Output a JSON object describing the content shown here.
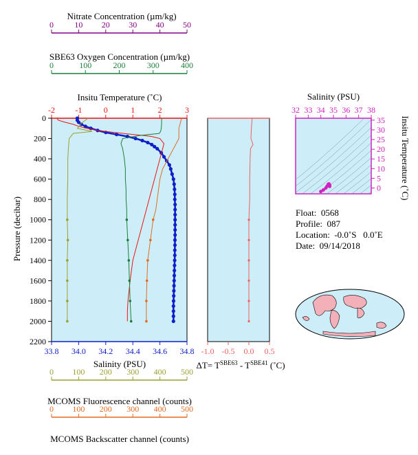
{
  "colors": {
    "nitrate": "#800080",
    "oxygen": "#1a7f3a",
    "temperature": "#ee1111",
    "salinity": "#1020c8",
    "fluorescence": "#9aa030",
    "backscatter": "#e06a20",
    "delta_t": "#ee6060",
    "ts_diagram": "#d020c0",
    "panel_bg": "#cdeef8",
    "land": "#f4b0b8"
  },
  "axes": {
    "nitrate": {
      "title": "Nitrate Concentration (µm/kg)",
      "ticks": [
        "0",
        "10",
        "20",
        "30",
        "40",
        "50"
      ]
    },
    "oxygen": {
      "title": "SBE63 Oxygen Concentration (µm/kg)",
      "ticks": [
        "0",
        "100",
        "200",
        "300",
        "400"
      ]
    },
    "temperature": {
      "title": "Insitu Temperature (˚C)",
      "ticks": [
        "-2",
        "-1",
        "0",
        "1",
        "2",
        "3"
      ]
    },
    "pressure": {
      "title": "Pressure (decibar)",
      "ticks": [
        "0",
        "200",
        "400",
        "600",
        "800",
        "1000",
        "1200",
        "1400",
        "1600",
        "1800",
        "2000",
        "2200"
      ]
    },
    "salinity": {
      "title": "Salinity (PSU)",
      "ticks": [
        "33.8",
        "34.0",
        "34.2",
        "34.4",
        "34.6",
        "34.8"
      ]
    },
    "fluorescence": {
      "title": "MCOMS Fluorescence channel (counts)",
      "ticks": [
        "0",
        "100",
        "200",
        "300",
        "400",
        "500"
      ]
    },
    "backscatter": {
      "title": "MCOMS Backscatter channel (counts)",
      "ticks": [
        "0",
        "100",
        "200",
        "300",
        "400",
        "500"
      ]
    },
    "delta_t": {
      "title_prefix": "ΔT= T",
      "sup1": "SBE63",
      "mid": " - T",
      "sup2": "SBE41",
      "suffix": " (˚C)",
      "ticks": [
        "-1.0",
        "-0.5",
        "0.0",
        "0.5"
      ]
    },
    "ts_salinity": {
      "title": "Salinity (PSU)",
      "ticks": [
        "32",
        "33",
        "34",
        "35",
        "36",
        "37",
        "38"
      ]
    },
    "ts_temperature": {
      "title": "Insitu Temperature (˚C)",
      "ticks": [
        "35",
        "30",
        "25",
        "20",
        "15",
        "10",
        "5",
        "0"
      ]
    }
  },
  "info": {
    "float": "Float:  0568",
    "profile": "Profile:  087",
    "location": "Location:  -0.0˚S   0.0˚E",
    "date": "Date:  09/14/2018"
  },
  "chart_data": {
    "type": "line",
    "y_variable": "Pressure (decibar)",
    "ylim": [
      2200,
      0
    ],
    "series": [
      {
        "name": "Salinity (PSU)",
        "xlim": [
          33.8,
          34.8
        ],
        "pressure": [
          0,
          20,
          40,
          60,
          80,
          100,
          120,
          140,
          160,
          180,
          200,
          220,
          240,
          260,
          280,
          300,
          340,
          380,
          420,
          460,
          500,
          550,
          600,
          650,
          700,
          750,
          800,
          850,
          900,
          950,
          1000,
          1050,
          1100,
          1150,
          1200,
          1250,
          1300,
          1350,
          1400,
          1450,
          1500,
          1550,
          1600,
          1650,
          1700,
          1750,
          1800,
          1850,
          1900,
          1950,
          2000
        ],
        "values": [
          33.99,
          33.99,
          34.0,
          34.02,
          34.05,
          34.09,
          34.14,
          34.2,
          34.28,
          34.36,
          34.42,
          34.47,
          34.51,
          34.54,
          34.56,
          34.58,
          34.61,
          34.63,
          34.65,
          34.67,
          34.68,
          34.69,
          34.7,
          34.705,
          34.708,
          34.71,
          34.71,
          34.712,
          34.712,
          34.712,
          34.712,
          34.712,
          34.712,
          34.712,
          34.711,
          34.711,
          34.71,
          34.71,
          34.709,
          34.708,
          34.707,
          34.706,
          34.705,
          34.704,
          34.703,
          34.702,
          34.701,
          34.7,
          34.7,
          34.7,
          34.7
        ]
      },
      {
        "name": "Insitu Temperature (˚C)",
        "xlim": [
          -2,
          3
        ],
        "pressure": [
          0,
          20,
          40,
          60,
          80,
          100,
          120,
          140,
          160,
          170,
          180,
          200,
          250,
          300,
          400,
          500,
          600,
          700,
          800,
          900,
          1000,
          1100,
          1200,
          1300,
          1400,
          1500,
          1600,
          1700,
          1800,
          1900,
          2000
        ],
        "values": [
          -1.8,
          -1.75,
          -1.5,
          -1.2,
          -1.0,
          -0.7,
          -0.3,
          0.3,
          1.0,
          1.4,
          1.7,
          2.0,
          2.15,
          2.1,
          2.0,
          1.9,
          1.8,
          1.7,
          1.6,
          1.5,
          1.4,
          1.3,
          1.2,
          1.1,
          1.0,
          0.95,
          0.9,
          0.86,
          0.82,
          0.8,
          0.8
        ]
      },
      {
        "name": "SBE63 Oxygen Concentration (µm/kg)",
        "xlim": [
          0,
          400
        ],
        "pressure": [
          0,
          50,
          100,
          130,
          150,
          170,
          200,
          250,
          300,
          400,
          500,
          600,
          700,
          800,
          900,
          1000,
          1200,
          1400,
          1600,
          1800,
          2000
        ],
        "values": [
          325,
          325,
          324,
          322,
          318,
          260,
          210,
          205,
          210,
          215,
          218,
          218,
          220,
          220,
          222,
          222,
          225,
          228,
          230,
          232,
          235
        ]
      },
      {
        "name": "MCOMS Fluorescence channel (counts)",
        "xlim": [
          0,
          500
        ],
        "pressure": [
          0,
          50,
          100,
          130,
          150,
          200,
          300,
          400,
          600,
          800,
          1000,
          1200,
          1400,
          1600,
          1800,
          2000
        ],
        "values": [
          135,
          110,
          95,
          150,
          80,
          65,
          62,
          60,
          60,
          58,
          58,
          60,
          58,
          58,
          58,
          58
        ]
      },
      {
        "name": "MCOMS Backscatter channel (counts)",
        "xlim": [
          0,
          500
        ],
        "pressure": [
          0,
          100,
          200,
          300,
          400,
          500,
          600,
          700,
          800,
          900,
          1000,
          1200,
          1400,
          1600,
          1800,
          2000
        ],
        "values": [
          480,
          470,
          470,
          450,
          430,
          410,
          400,
          395,
          390,
          385,
          375,
          365,
          355,
          352,
          350,
          350
        ]
      },
      {
        "name": "ΔT",
        "xlim": [
          -1.0,
          0.5
        ],
        "pressure": [
          0,
          100,
          200,
          260,
          300,
          400,
          600,
          800,
          1000,
          1200,
          1400,
          1600,
          1800,
          2000
        ],
        "values": [
          0.08,
          0.06,
          0.05,
          0.1,
          0.04,
          0.03,
          0.02,
          0.02,
          0.0,
          0.0,
          0.0,
          0.0,
          0.0,
          0.0
        ]
      }
    ],
    "ts_diagram": {
      "xlim": [
        32,
        38
      ],
      "ylim": [
        -3,
        36
      ],
      "salinity": [
        34.0,
        34.2,
        34.4,
        34.5,
        34.6,
        34.65,
        34.7,
        34.7
      ],
      "temperature": [
        -1.8,
        -1.0,
        0.0,
        1.0,
        2.0,
        2.1,
        1.5,
        0.8
      ]
    }
  }
}
